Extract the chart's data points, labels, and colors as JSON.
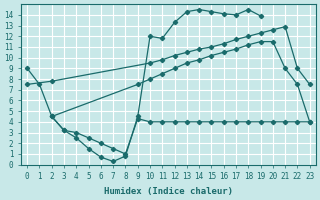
{
  "xlabel": "Humidex (Indice chaleur)",
  "background_color": "#c8e8e8",
  "grid_color": "#ffffff",
  "line_color": "#1a6b6b",
  "xlim": [
    -0.5,
    23.5
  ],
  "ylim": [
    0,
    15
  ],
  "xticks": [
    0,
    1,
    2,
    3,
    4,
    5,
    6,
    7,
    8,
    9,
    10,
    11,
    12,
    13,
    14,
    15,
    16,
    17,
    18,
    19,
    20,
    21,
    22,
    23
  ],
  "yticks": [
    0,
    1,
    2,
    3,
    4,
    5,
    6,
    7,
    8,
    9,
    10,
    11,
    12,
    13,
    14
  ],
  "series1_x": [
    0,
    1,
    2,
    3,
    4,
    5,
    6,
    7,
    8,
    9,
    10,
    11,
    12,
    13,
    14,
    15,
    16,
    17,
    18,
    19
  ],
  "series1_y": [
    9.0,
    7.5,
    4.5,
    3.2,
    2.5,
    1.5,
    0.7,
    0.3,
    0.8,
    4.5,
    12.0,
    11.8,
    13.3,
    14.3,
    14.5,
    14.3,
    14.1,
    14.0,
    14.5,
    13.9
  ],
  "series2_x": [
    0,
    2,
    10,
    11,
    12,
    13,
    14,
    15,
    16,
    17,
    18,
    19,
    20,
    21,
    22,
    23
  ],
  "series2_y": [
    7.5,
    7.8,
    9.5,
    9.8,
    10.2,
    10.5,
    10.8,
    11.0,
    11.3,
    11.7,
    12.0,
    12.3,
    12.6,
    12.9,
    9.0,
    7.5
  ],
  "series3_x": [
    2,
    9,
    10,
    11,
    12,
    13,
    14,
    15,
    16,
    17,
    18,
    19,
    20,
    21,
    22,
    23
  ],
  "series3_y": [
    4.5,
    7.5,
    8.0,
    8.5,
    9.0,
    9.5,
    9.8,
    10.2,
    10.5,
    10.8,
    11.2,
    11.5,
    11.5,
    9.0,
    7.5,
    4.0
  ],
  "series4_x": [
    2,
    3,
    4,
    5,
    6,
    7,
    8,
    9,
    10,
    11,
    12,
    13,
    14,
    15,
    16,
    17,
    18,
    19,
    20,
    21,
    22,
    23
  ],
  "series4_y": [
    4.5,
    3.2,
    3.0,
    2.5,
    2.0,
    1.5,
    1.0,
    4.3,
    4.0,
    4.0,
    4.0,
    4.0,
    4.0,
    4.0,
    4.0,
    4.0,
    4.0,
    4.0,
    4.0,
    4.0,
    4.0,
    4.0
  ]
}
